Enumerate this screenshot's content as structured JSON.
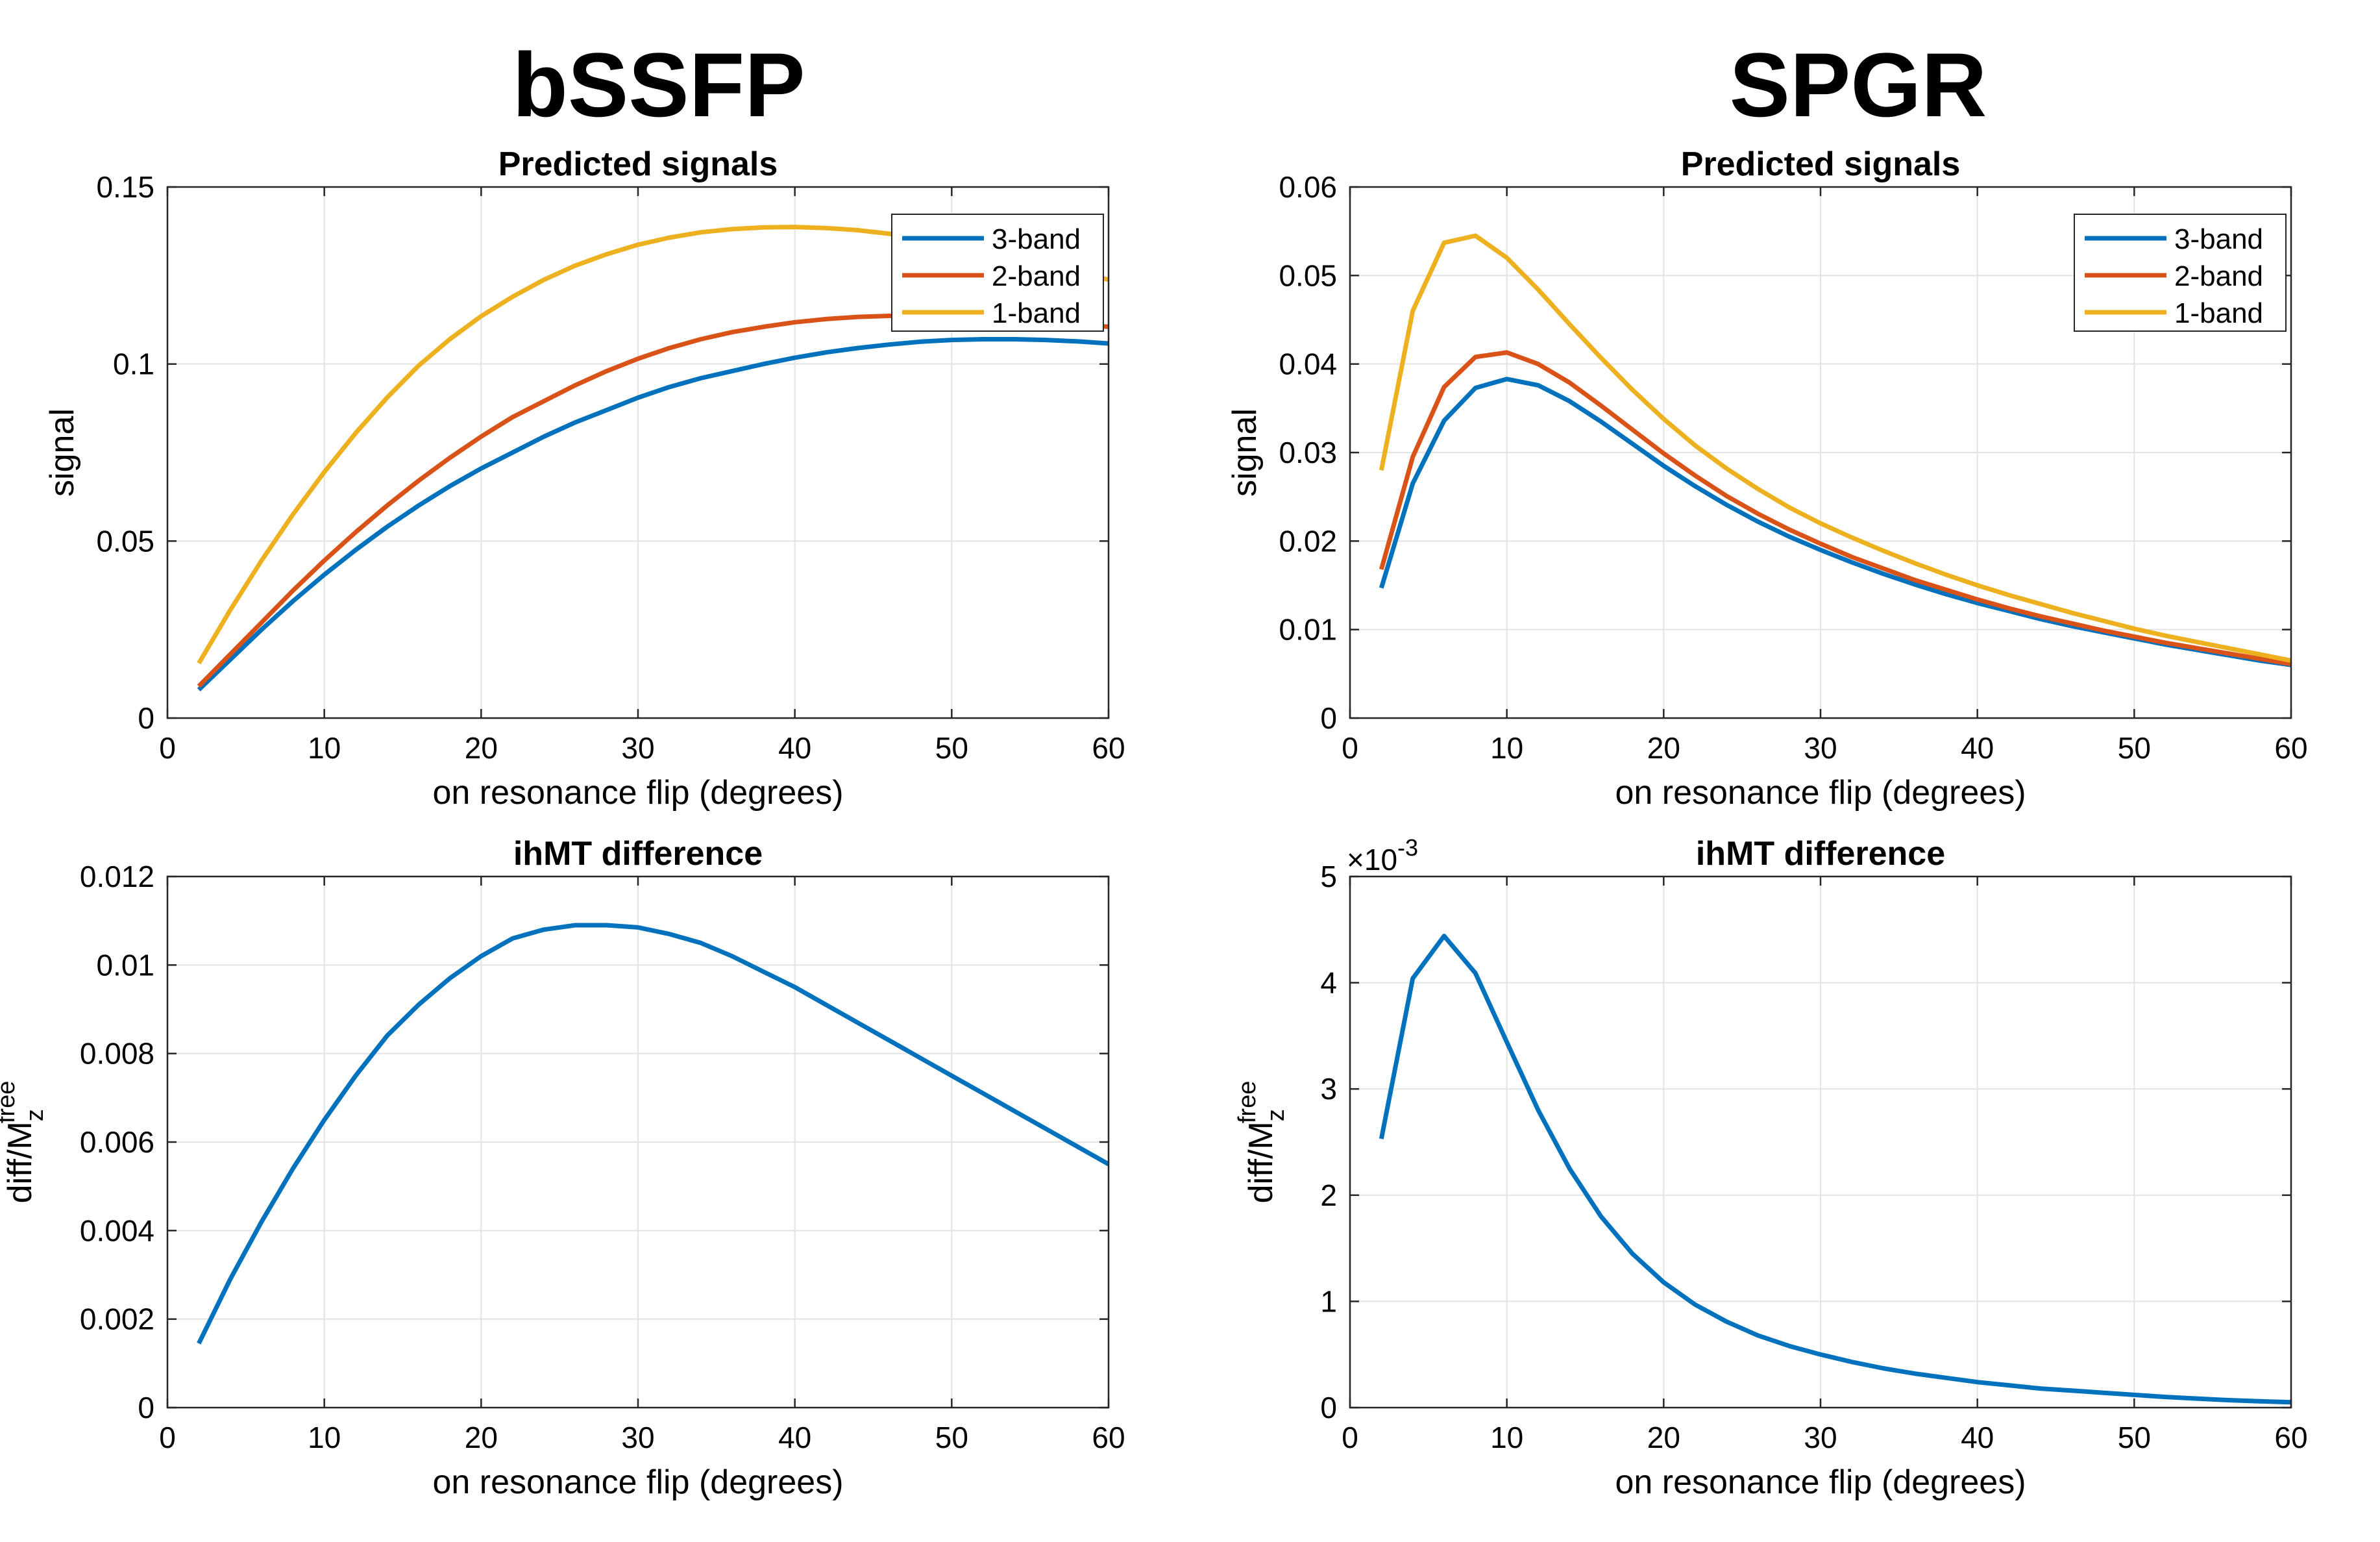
{
  "figure": {
    "left_title": "bSSFP",
    "right_title": "SPGR"
  },
  "colors": {
    "series_blue": "#0072BD",
    "series_orange": "#D95319",
    "series_yellow": "#EDB120",
    "grid": "#e3e3e3",
    "axis": "#262626"
  },
  "chart_data": [
    {
      "id": "bssfp-signals",
      "type": "line",
      "title": "Predicted signals",
      "xlabel": "on resonance flip (degrees)",
      "ylabel": "signal",
      "xlim": [
        0,
        60
      ],
      "ylim": [
        0,
        0.15
      ],
      "xticks": [
        0,
        10,
        20,
        30,
        40,
        50,
        60
      ],
      "yticks": [
        0,
        0.05,
        0.1,
        0.15
      ],
      "ytick_labels": [
        "0",
        "0.05",
        "0.1",
        "0.15"
      ],
      "grid": true,
      "legend": "top-right",
      "x": [
        2,
        4,
        6,
        8,
        10,
        12,
        14,
        16,
        18,
        20,
        22,
        24,
        26,
        28,
        30,
        32,
        34,
        36,
        38,
        40,
        42,
        44,
        46,
        48,
        50,
        52,
        54,
        56,
        58,
        60
      ],
      "series": [
        {
          "name": "3-band",
          "color": "#0072BD",
          "values": [
            0.008,
            0.0165,
            0.025,
            0.033,
            0.0405,
            0.0475,
            0.054,
            0.06,
            0.0655,
            0.0705,
            0.075,
            0.0795,
            0.0835,
            0.087,
            0.0905,
            0.0935,
            0.096,
            0.098,
            0.1,
            0.1018,
            0.1033,
            0.1045,
            0.1055,
            0.1063,
            0.1068,
            0.107,
            0.107,
            0.1068,
            0.1064,
            0.1058
          ]
        },
        {
          "name": "2-band",
          "color": "#D95319",
          "values": [
            0.009,
            0.018,
            0.027,
            0.036,
            0.0445,
            0.0525,
            0.06,
            0.067,
            0.0735,
            0.0795,
            0.085,
            0.0895,
            0.094,
            0.098,
            0.1015,
            0.1045,
            0.107,
            0.109,
            0.1105,
            0.1118,
            0.1127,
            0.1133,
            0.1136,
            0.1137,
            0.1135,
            0.1131,
            0.1126,
            0.112,
            0.1113,
            0.1105
          ]
        },
        {
          "name": "1-band",
          "color": "#EDB120",
          "values": [
            0.0155,
            0.0305,
            0.0445,
            0.0575,
            0.0695,
            0.0805,
            0.0905,
            0.0995,
            0.107,
            0.1135,
            0.119,
            0.1238,
            0.1278,
            0.131,
            0.1337,
            0.1357,
            0.1372,
            0.1381,
            0.1386,
            0.1387,
            0.1384,
            0.1378,
            0.1368,
            0.1355,
            0.134,
            0.1322,
            0.1303,
            0.1282,
            0.1261,
            0.1238
          ]
        }
      ]
    },
    {
      "id": "spgr-signals",
      "type": "line",
      "title": "Predicted signals",
      "xlabel": "on resonance flip (degrees)",
      "ylabel": "signal",
      "xlim": [
        0,
        60
      ],
      "ylim": [
        0,
        0.06
      ],
      "xticks": [
        0,
        10,
        20,
        30,
        40,
        50,
        60
      ],
      "yticks": [
        0,
        0.01,
        0.02,
        0.03,
        0.04,
        0.05,
        0.06
      ],
      "ytick_labels": [
        "0",
        "0.01",
        "0.02",
        "0.03",
        "0.04",
        "0.05",
        "0.06"
      ],
      "grid": true,
      "legend": "top-right",
      "x": [
        2,
        4,
        6,
        8,
        10,
        12,
        14,
        16,
        18,
        20,
        22,
        24,
        26,
        28,
        30,
        32,
        34,
        36,
        38,
        40,
        42,
        44,
        46,
        48,
        50,
        52,
        54,
        56,
        58,
        60
      ],
      "series": [
        {
          "name": "3-band",
          "color": "#0072BD",
          "values": [
            0.0147,
            0.0265,
            0.0336,
            0.0373,
            0.0383,
            0.0376,
            0.0358,
            0.0335,
            0.031,
            0.0285,
            0.0262,
            0.0241,
            0.0222,
            0.0205,
            0.019,
            0.0176,
            0.0163,
            0.0151,
            0.014,
            0.013,
            0.0121,
            0.0112,
            0.0104,
            0.0097,
            0.009,
            0.0083,
            0.0077,
            0.0071,
            0.0065,
            0.006
          ]
        },
        {
          "name": "2-band",
          "color": "#D95319",
          "values": [
            0.0168,
            0.0295,
            0.0374,
            0.0408,
            0.0413,
            0.04,
            0.0379,
            0.0353,
            0.0326,
            0.0299,
            0.0274,
            0.0251,
            0.0231,
            0.0213,
            0.0197,
            0.0182,
            0.0169,
            0.0156,
            0.0145,
            0.0134,
            0.0124,
            0.0115,
            0.0107,
            0.0099,
            0.0092,
            0.0085,
            0.0079,
            0.0073,
            0.0067,
            0.0061
          ]
        },
        {
          "name": "1-band",
          "color": "#EDB120",
          "values": [
            0.028,
            0.046,
            0.0537,
            0.0545,
            0.052,
            0.0484,
            0.0445,
            0.0407,
            0.0371,
            0.0338,
            0.0308,
            0.0282,
            0.0259,
            0.0238,
            0.022,
            0.0204,
            0.0189,
            0.0175,
            0.0162,
            0.015,
            0.0139,
            0.0129,
            0.0119,
            0.011,
            0.0101,
            0.0093,
            0.0086,
            0.0079,
            0.0072,
            0.0065
          ]
        }
      ]
    },
    {
      "id": "bssfp-ihmt",
      "type": "line",
      "title": "ihMT difference",
      "xlabel": "on resonance flip (degrees)",
      "ylabel_main": "diff/M",
      "ylabel_sup": "free",
      "ylabel_sub": "z",
      "xlim": [
        0,
        60
      ],
      "ylim": [
        0,
        0.012
      ],
      "xticks": [
        0,
        10,
        20,
        30,
        40,
        50,
        60
      ],
      "yticks": [
        0,
        0.002,
        0.004,
        0.006,
        0.008,
        0.01,
        0.012
      ],
      "ytick_labels": [
        "0",
        "0.002",
        "0.004",
        "0.006",
        "0.008",
        "0.01",
        "0.012"
      ],
      "grid": true,
      "x": [
        2,
        4,
        6,
        8,
        10,
        12,
        14,
        16,
        18,
        20,
        22,
        24,
        26,
        28,
        30,
        32,
        34,
        36,
        38,
        40,
        42,
        44,
        46,
        48,
        50,
        52,
        54,
        56,
        58,
        60
      ],
      "series": [
        {
          "name": "ihMT difference",
          "color": "#0072BD",
          "values": [
            0.00145,
            0.0029,
            0.0042,
            0.0054,
            0.0065,
            0.0075,
            0.0084,
            0.0091,
            0.0097,
            0.0102,
            0.0106,
            0.0108,
            0.0109,
            0.0109,
            0.01085,
            0.0107,
            0.0105,
            0.0102,
            0.00985,
            0.0095,
            0.0091,
            0.0087,
            0.0083,
            0.0079,
            0.0075,
            0.0071,
            0.0067,
            0.0063,
            0.0059,
            0.0055
          ]
        }
      ]
    },
    {
      "id": "spgr-ihmt",
      "type": "line",
      "title": "ihMT difference",
      "xlabel": "on resonance flip (degrees)",
      "ylabel_main": "diff/M",
      "ylabel_sup": "free",
      "ylabel_sub": "z",
      "axis_multiplier": "×10",
      "axis_multiplier_exp": "-3",
      "xlim": [
        0,
        60
      ],
      "ylim": [
        0,
        5
      ],
      "xticks": [
        0,
        10,
        20,
        30,
        40,
        50,
        60
      ],
      "yticks": [
        0,
        1,
        2,
        3,
        4,
        5
      ],
      "ytick_labels": [
        "0",
        "1",
        "2",
        "3",
        "4",
        "5"
      ],
      "grid": true,
      "x": [
        2,
        4,
        6,
        8,
        10,
        12,
        14,
        16,
        18,
        20,
        22,
        24,
        26,
        28,
        30,
        32,
        34,
        36,
        38,
        40,
        42,
        44,
        46,
        48,
        50,
        52,
        54,
        56,
        58,
        60
      ],
      "series": [
        {
          "name": "ihMT difference",
          "color": "#0072BD",
          "values": [
            2.53,
            4.04,
            4.44,
            4.09,
            3.44,
            2.8,
            2.25,
            1.8,
            1.45,
            1.18,
            0.97,
            0.81,
            0.68,
            0.58,
            0.5,
            0.43,
            0.37,
            0.32,
            0.28,
            0.24,
            0.21,
            0.18,
            0.16,
            0.14,
            0.12,
            0.1,
            0.085,
            0.07,
            0.06,
            0.05
          ]
        }
      ]
    }
  ]
}
